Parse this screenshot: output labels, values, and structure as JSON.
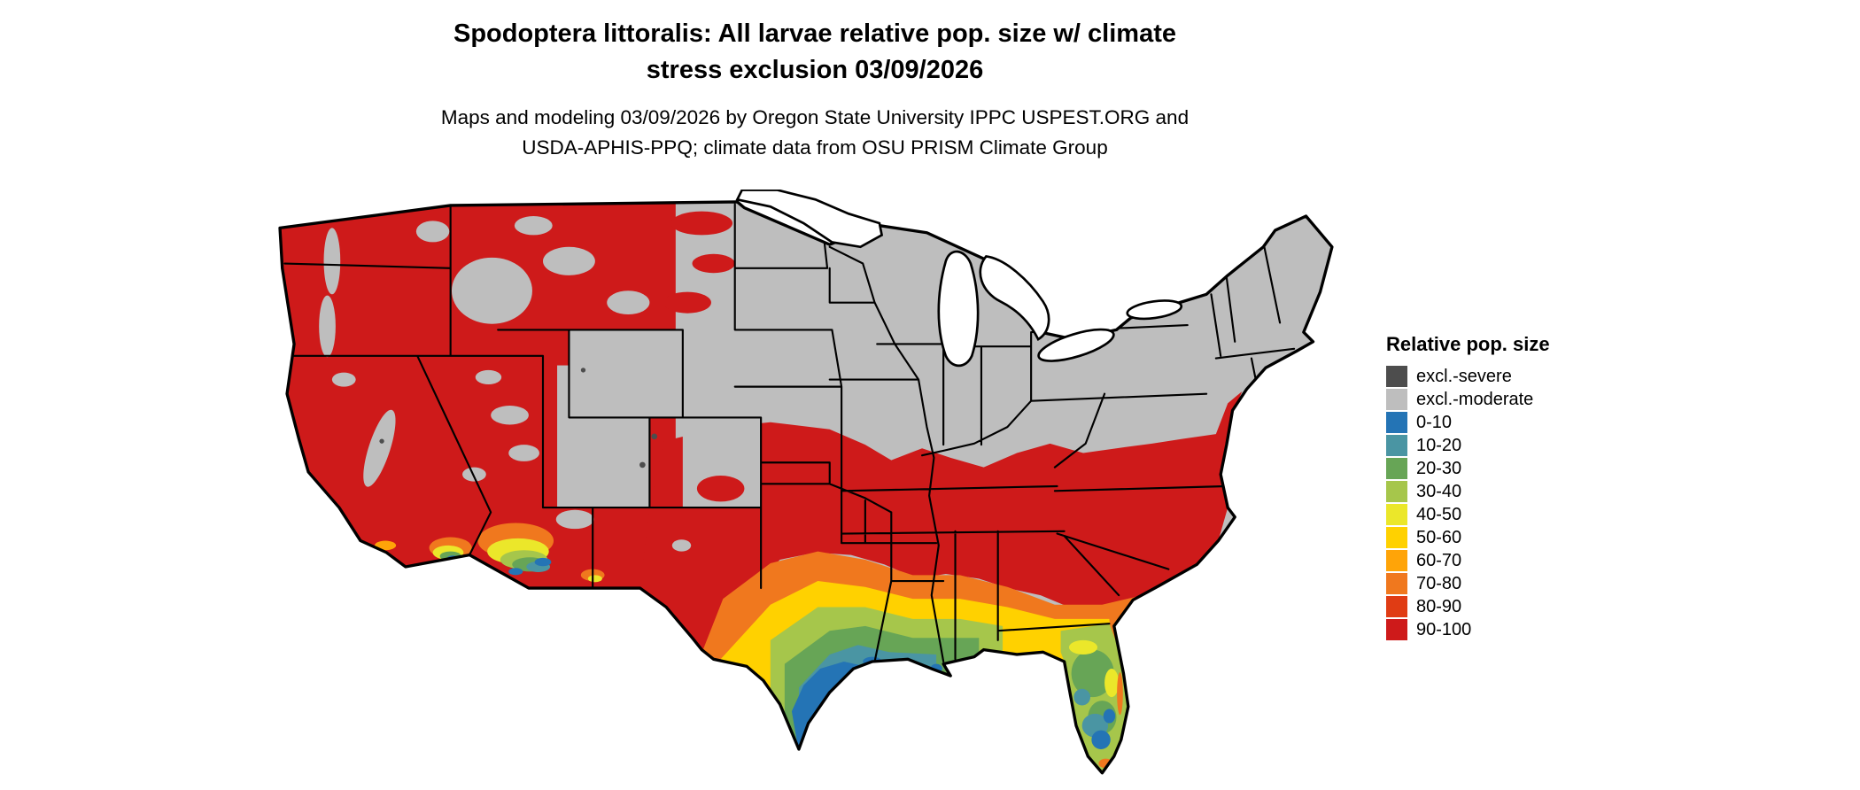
{
  "header": {
    "title_line1": "Spodoptera littoralis: All larvae relative pop. size w/ climate",
    "title_line2": "stress exclusion 03/09/2026",
    "subtitle_line1": "Maps and modeling 03/09/2026 by Oregon State University IPPC USPEST.ORG and",
    "subtitle_line2": "USDA-APHIS-PPQ; climate data from OSU PRISM Climate Group"
  },
  "map": {
    "name": "Continental United States relative population size raster map",
    "palette": {
      "excl_severe": "#4D4D4D",
      "excl_moderate": "#BEBEBE",
      "p0_10": "#2474B5",
      "p10_20": "#4A95A3",
      "p20_30": "#67A556",
      "p30_40": "#A6C64B",
      "p40_50": "#EBE72A",
      "p50_60": "#FFD100",
      "p60_70": "#FFA408",
      "p70_80": "#F0781E",
      "p80_90": "#E03C14",
      "p90_100": "#CE1A1A"
    }
  },
  "legend": {
    "title": "Relative pop. size",
    "items": [
      {
        "label": "excl.-severe",
        "color_key": "excl_severe"
      },
      {
        "label": "excl.-moderate",
        "color_key": "excl_moderate"
      },
      {
        "label": "0-10",
        "color_key": "p0_10"
      },
      {
        "label": "10-20",
        "color_key": "p10_20"
      },
      {
        "label": "20-30",
        "color_key": "p20_30"
      },
      {
        "label": "30-40",
        "color_key": "p30_40"
      },
      {
        "label": "40-50",
        "color_key": "p40_50"
      },
      {
        "label": "50-60",
        "color_key": "p50_60"
      },
      {
        "label": "60-70",
        "color_key": "p60_70"
      },
      {
        "label": "70-80",
        "color_key": "p70_80"
      },
      {
        "label": "80-90",
        "color_key": "p80_90"
      },
      {
        "label": "90-100",
        "color_key": "p90_100"
      }
    ]
  }
}
